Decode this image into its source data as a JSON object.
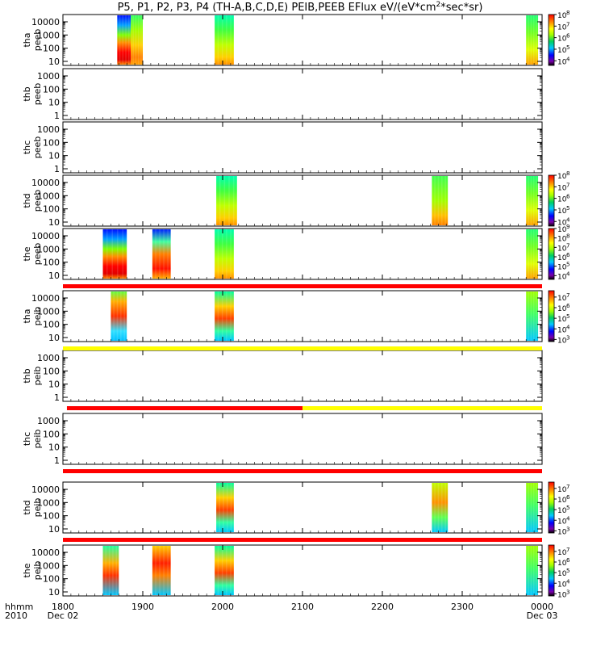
{
  "chart_data": {
    "type": "heatmap",
    "title_parts": [
      "P5, P1, P2, P3, P4 (TH-A,B,C,D,E) PEIB,PEEB EFlux eV/(eV*cm",
      "2",
      "*sec*sr)"
    ],
    "x_axis": {
      "range": [
        1800,
        2400
      ],
      "ticks": [
        {
          "value": 1800,
          "label": "1800",
          "sub": "Dec 02"
        },
        {
          "value": 1900,
          "label": "1900",
          "sub": ""
        },
        {
          "value": 2000,
          "label": "2000",
          "sub": ""
        },
        {
          "value": 2100,
          "label": "2100",
          "sub": ""
        },
        {
          "value": 2200,
          "label": "2200",
          "sub": ""
        },
        {
          "value": 2300,
          "label": "2300",
          "sub": ""
        },
        {
          "value": 2400,
          "label": "0000",
          "sub": "Dec 03"
        }
      ],
      "label_top": "hhmm",
      "label_bottom": "2010"
    },
    "panels": [
      {
        "probe": "tha",
        "product": "peeb",
        "y_ticks": [
          "10",
          "100",
          "1000",
          "10000"
        ],
        "colorbar": {
          "min_exp": 3.6,
          "max_exp": 8,
          "labels": [
            "8",
            "7",
            "6",
            "5",
            "4"
          ]
        },
        "blocks": [
          {
            "x0": 1868,
            "x1": 1885,
            "style": "e1"
          },
          {
            "x0": 1885,
            "x1": 1900,
            "style": "e2"
          },
          {
            "x0": 1990,
            "x1": 2014,
            "style": "e3"
          },
          {
            "x0": 2380,
            "x1": 2395,
            "style": "e4"
          }
        ]
      },
      {
        "probe": "thb",
        "product": "peeb",
        "y_ticks": [
          "1",
          "10",
          "100",
          "1000"
        ],
        "colorbar": null,
        "blocks": []
      },
      {
        "probe": "thc",
        "product": "peeb",
        "y_ticks": [
          "1",
          "10",
          "100",
          "1000"
        ],
        "colorbar": null,
        "blocks": []
      },
      {
        "probe": "thd",
        "product": "peeb",
        "y_ticks": [
          "10",
          "100",
          "1000",
          "10000"
        ],
        "colorbar": {
          "min_exp": 3.6,
          "max_exp": 8,
          "labels": [
            "8",
            "7",
            "6",
            "5",
            "4"
          ]
        },
        "blocks": [
          {
            "x0": 1992,
            "x1": 2018,
            "style": "e3"
          },
          {
            "x0": 2262,
            "x1": 2282,
            "style": "e5"
          },
          {
            "x0": 2380,
            "x1": 2395,
            "style": "e4"
          }
        ]
      },
      {
        "probe": "the",
        "product": "peeb",
        "y_ticks": [
          "10",
          "100",
          "1000",
          "10000"
        ],
        "colorbar": {
          "min_exp": 3.6,
          "max_exp": 9,
          "labels": [
            "9",
            "8",
            "7",
            "6",
            "5",
            "4"
          ]
        },
        "blocks": [
          {
            "x0": 1850,
            "x1": 1880,
            "style": "e1"
          },
          {
            "x0": 1912,
            "x1": 1935,
            "style": "e6"
          },
          {
            "x0": 1990,
            "x1": 2014,
            "style": "e3"
          },
          {
            "x0": 2380,
            "x1": 2395,
            "style": "e4"
          }
        ]
      },
      {
        "probe": "tha",
        "product": "peib",
        "y_ticks": [
          "10",
          "100",
          "1000",
          "10000"
        ],
        "colorbar": {
          "min_exp": 2.8,
          "max_exp": 7.6,
          "labels": [
            "7",
            "6",
            "5",
            "4",
            "3"
          ]
        },
        "blocks": [
          {
            "x0": 1860,
            "x1": 1880,
            "style": "i1"
          },
          {
            "x0": 1990,
            "x1": 2014,
            "style": "i2"
          },
          {
            "x0": 2380,
            "x1": 2395,
            "style": "i3"
          }
        ]
      },
      {
        "probe": "thb",
        "product": "peib",
        "y_ticks": [
          "1",
          "10",
          "100",
          "1000"
        ],
        "colorbar": null,
        "blocks": []
      },
      {
        "probe": "thc",
        "product": "peib",
        "y_ticks": [
          "1",
          "10",
          "100",
          "1000"
        ],
        "colorbar": null,
        "blocks": []
      },
      {
        "probe": "thd",
        "product": "peib",
        "y_ticks": [
          "10",
          "100",
          "1000",
          "10000"
        ],
        "colorbar": {
          "min_exp": 2.8,
          "max_exp": 7.6,
          "labels": [
            "7",
            "6",
            "5",
            "4",
            "3"
          ]
        },
        "blocks": [
          {
            "x0": 1992,
            "x1": 2014,
            "style": "i2"
          },
          {
            "x0": 2262,
            "x1": 2282,
            "style": "i4"
          },
          {
            "x0": 2380,
            "x1": 2395,
            "style": "i3"
          }
        ]
      },
      {
        "probe": "the",
        "product": "peib",
        "y_ticks": [
          "10",
          "100",
          "1000",
          "10000"
        ],
        "colorbar": {
          "min_exp": 2.8,
          "max_exp": 7.6,
          "labels": [
            "7",
            "6",
            "5",
            "4",
            "3"
          ]
        },
        "blocks": [
          {
            "x0": 1850,
            "x1": 1870,
            "style": "i5"
          },
          {
            "x0": 1912,
            "x1": 1935,
            "style": "i6"
          },
          {
            "x0": 1990,
            "x1": 2014,
            "style": "i2"
          },
          {
            "x0": 2380,
            "x1": 2395,
            "style": "i3"
          }
        ]
      }
    ],
    "mode_bars": [
      {
        "after_panel": 4,
        "segments": [
          {
            "x0": 1800,
            "x1": 2400,
            "color": "#ff0000"
          }
        ]
      },
      {
        "after_panel": 5,
        "segments": [
          {
            "x0": 1800,
            "x1": 2400,
            "color": "#ffff00"
          }
        ]
      },
      {
        "after_panel": 6,
        "segments": [
          {
            "x0": 1805,
            "x1": 2100,
            "color": "#ff0000"
          },
          {
            "x0": 2100,
            "x1": 2400,
            "color": "#ffff00"
          }
        ]
      },
      {
        "after_panel": 7,
        "segments": [
          {
            "x0": 1800,
            "x1": 2400,
            "color": "#ff0000"
          }
        ]
      },
      {
        "after_panel": 8,
        "segments": [
          {
            "x0": 1800,
            "x1": 2400,
            "color": "#ff0000"
          }
        ]
      }
    ]
  }
}
